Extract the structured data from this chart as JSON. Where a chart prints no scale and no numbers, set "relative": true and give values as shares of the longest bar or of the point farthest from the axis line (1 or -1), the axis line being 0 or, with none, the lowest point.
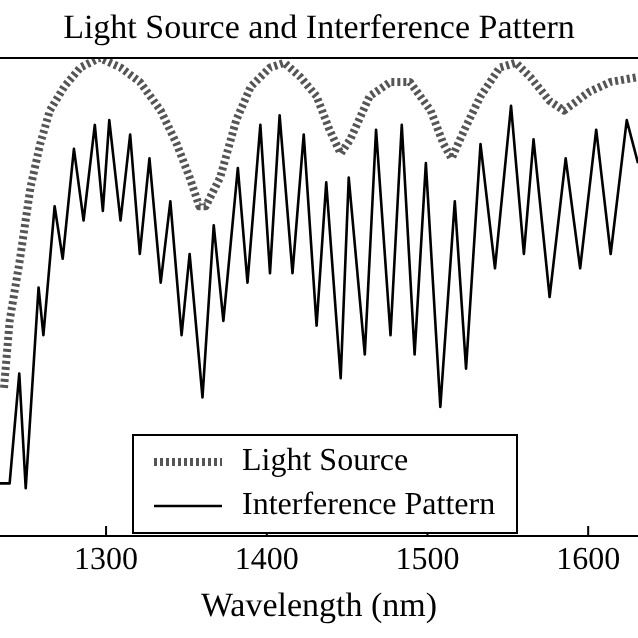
{
  "chart_data": {
    "type": "line",
    "title": "Light Source and Interference Pattern",
    "xlabel": "Wavelength (nm)",
    "relative": true,
    "xlim": [
      1234,
      1631
    ],
    "xticks": [
      1300,
      1400,
      1500,
      1600
    ],
    "legend": "bottom",
    "marker": "none",
    "series": [
      {
        "name": "Light Source",
        "color": "#555555",
        "line_style": "dotted",
        "x": [
          1236.5,
          1240,
          1246,
          1253,
          1259,
          1265,
          1274,
          1284,
          1296,
          1309,
          1321,
          1334,
          1344,
          1352,
          1358,
          1362,
          1371,
          1381,
          1390,
          1402,
          1411,
          1421,
          1431,
          1439,
          1446,
          1452,
          1464,
          1477,
          1489,
          1502,
          1510,
          1515,
          1523,
          1533,
          1545,
          1555,
          1564,
          1576,
          1585,
          1601,
          1614,
          1631
        ],
        "values": [
          0.31,
          0.45,
          0.57,
          0.73,
          0.82,
          0.89,
          0.94,
          0.98,
          1.0,
          0.98,
          0.95,
          0.89,
          0.82,
          0.75,
          0.69,
          0.69,
          0.75,
          0.87,
          0.94,
          0.98,
          0.99,
          0.96,
          0.92,
          0.85,
          0.8,
          0.83,
          0.92,
          0.95,
          0.95,
          0.89,
          0.82,
          0.79,
          0.85,
          0.92,
          0.98,
          0.99,
          0.96,
          0.91,
          0.89,
          0.93,
          0.95,
          0.96
        ]
      },
      {
        "name": "Interference Pattern",
        "color": "#000000",
        "line_style": "solid",
        "x": [
          1234,
          1240,
          1246,
          1250,
          1258,
          1261,
          1268,
          1273,
          1280,
          1286,
          1293,
          1298,
          1302,
          1309,
          1315,
          1321,
          1327,
          1334,
          1340,
          1347,
          1352,
          1360,
          1367,
          1373,
          1382,
          1388,
          1396,
          1402,
          1408,
          1416,
          1423,
          1431,
          1437,
          1446,
          1451,
          1461,
          1468,
          1477,
          1484,
          1492,
          1499,
          1508,
          1517,
          1524,
          1533,
          1542,
          1552,
          1560,
          1566,
          1576,
          1586,
          1595,
          1605,
          1614,
          1624,
          1631
        ],
        "values": [
          0.11,
          0.11,
          0.34,
          0.1,
          0.52,
          0.42,
          0.69,
          0.58,
          0.81,
          0.66,
          0.86,
          0.68,
          0.87,
          0.66,
          0.84,
          0.59,
          0.79,
          0.53,
          0.7,
          0.42,
          0.59,
          0.29,
          0.65,
          0.45,
          0.77,
          0.53,
          0.86,
          0.55,
          0.88,
          0.55,
          0.84,
          0.44,
          0.74,
          0.33,
          0.75,
          0.38,
          0.85,
          0.42,
          0.86,
          0.38,
          0.78,
          0.27,
          0.7,
          0.35,
          0.82,
          0.56,
          0.9,
          0.59,
          0.83,
          0.5,
          0.79,
          0.56,
          0.85,
          0.59,
          0.87,
          0.78
        ]
      }
    ]
  }
}
